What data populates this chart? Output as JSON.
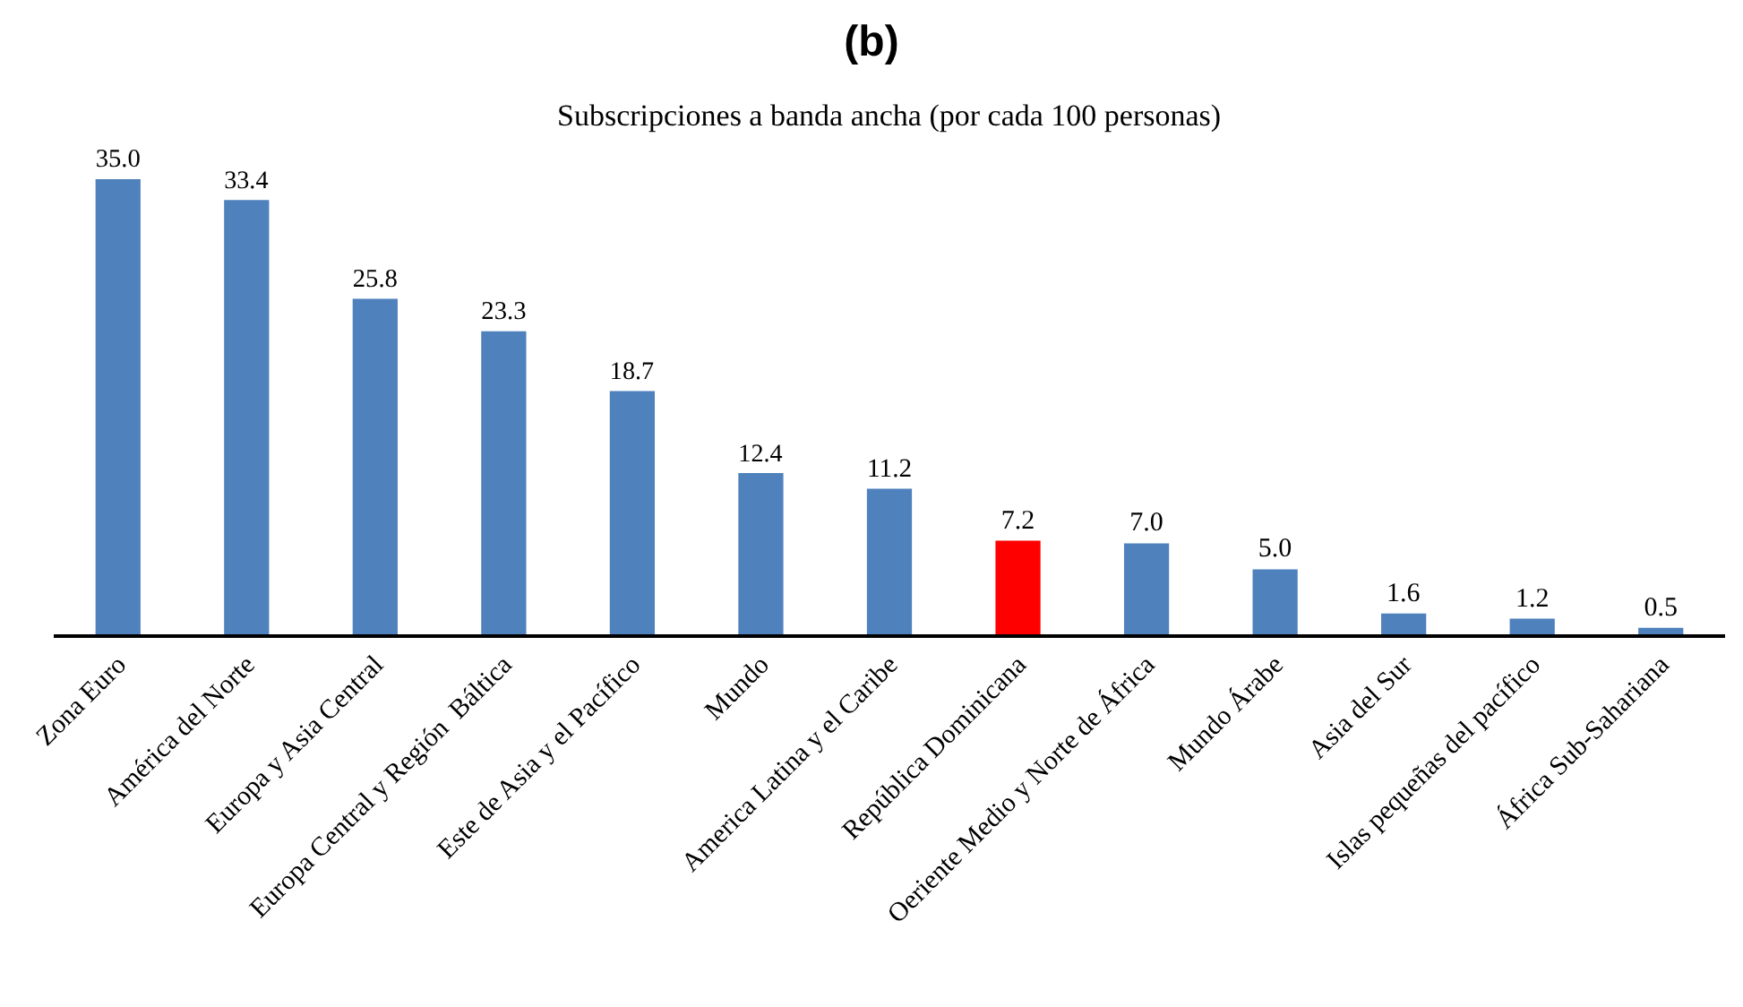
{
  "chart_data": {
    "type": "bar",
    "title": "(b)",
    "subtitle": "Subscripciones a banda ancha (por cada 100 personas)",
    "categories": [
      "Zona Euro",
      "América del Norte",
      "Europa y Asia Central",
      "Europa Central y Región  Báltica",
      "Este de Asia y el Pacífico",
      "Mundo",
      "America Latina y el Caribe",
      "República Dominicana",
      "Oeriente Medio y Norte de África",
      "Mundo Árabe",
      "Asia del Sur",
      "Islas pequeñas del pacífico",
      "África Sub-Sahariana"
    ],
    "values": [
      35.0,
      33.4,
      25.8,
      23.3,
      18.7,
      12.4,
      11.2,
      7.2,
      7.0,
      5.0,
      1.6,
      1.2,
      0.5
    ],
    "colors": [
      "#4f81bd",
      "#4f81bd",
      "#4f81bd",
      "#4f81bd",
      "#4f81bd",
      "#4f81bd",
      "#4f81bd",
      "#ff0000",
      "#4f81bd",
      "#4f81bd",
      "#4f81bd",
      "#4f81bd",
      "#4f81bd"
    ],
    "value_labels": [
      "35.0",
      "33.4",
      "25.8",
      "23.3",
      "18.7",
      "12.4",
      "11.2",
      "7.2",
      "7.0",
      "5.0",
      "1.6",
      "1.2",
      "0.5"
    ]
  }
}
